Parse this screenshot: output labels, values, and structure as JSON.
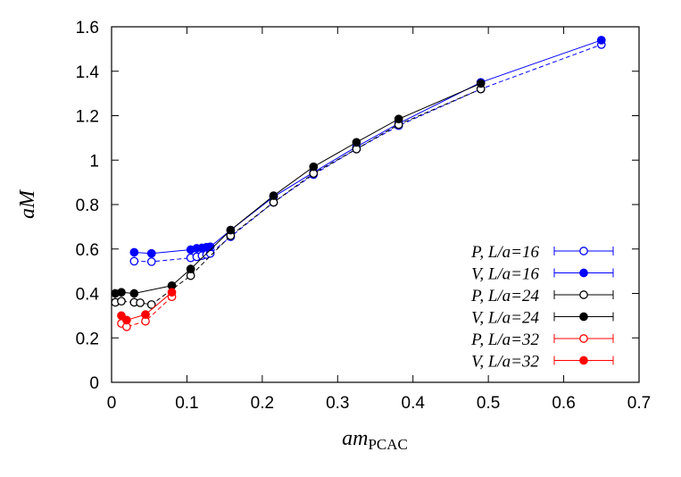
{
  "chart_data": {
    "type": "scatter",
    "title": "",
    "xlabel": {
      "main": "am",
      "sub": "PCAC"
    },
    "ylabel": "aM",
    "xlim": [
      0,
      0.7
    ],
    "ylim": [
      0,
      1.6
    ],
    "xticks": [
      0,
      0.1,
      0.2,
      0.3,
      0.4,
      0.5,
      0.6,
      0.7
    ],
    "xtick_labels": [
      "0",
      "0.1",
      "0.2",
      "0.3",
      "0.4",
      "0.5",
      "0.6",
      "0.7"
    ],
    "yticks": [
      0,
      0.2,
      0.4,
      0.6,
      0.8,
      1.0,
      1.2,
      1.4,
      1.6
    ],
    "ytick_labels": [
      "0",
      "0.2",
      "0.4",
      "0.6",
      "0.8",
      "1",
      "1.2",
      "1.4",
      "1.6"
    ],
    "grid": false,
    "legend_position": "right",
    "series": [
      {
        "name": "P, L/a=16",
        "color": "#0000ff",
        "marker": "open-circle",
        "line": "dashed",
        "x": [
          0.03,
          0.053,
          0.105,
          0.113,
          0.12,
          0.126,
          0.131,
          0.158,
          0.215,
          0.268,
          0.325,
          0.381,
          0.49,
          0.65
        ],
        "y": [
          0.545,
          0.543,
          0.56,
          0.565,
          0.57,
          0.575,
          0.58,
          0.655,
          0.81,
          0.935,
          1.05,
          1.155,
          1.32,
          1.52
        ]
      },
      {
        "name": "V, L/a=16",
        "color": "#0000ff",
        "marker": "filled-circle",
        "line": "solid",
        "x": [
          0.03,
          0.053,
          0.105,
          0.113,
          0.12,
          0.126,
          0.131,
          0.158,
          0.215,
          0.268,
          0.325,
          0.381,
          0.49,
          0.65
        ],
        "y": [
          0.585,
          0.58,
          0.597,
          0.603,
          0.605,
          0.608,
          0.61,
          0.685,
          0.835,
          0.945,
          1.06,
          1.165,
          1.35,
          1.54
        ]
      },
      {
        "name": "P, L/a=24",
        "color": "#000000",
        "marker": "open-circle",
        "line": "dashed",
        "x": [
          0.005,
          0.013,
          0.03,
          0.038,
          0.053,
          0.105,
          0.158,
          0.215,
          0.268,
          0.325,
          0.381,
          0.49
        ],
        "y": [
          0.36,
          0.365,
          0.36,
          0.358,
          0.35,
          0.48,
          0.66,
          0.81,
          0.94,
          1.05,
          1.16,
          1.32
        ]
      },
      {
        "name": "V, L/a=24",
        "color": "#000000",
        "marker": "filled-circle",
        "line": "solid",
        "x": [
          0.005,
          0.013,
          0.03,
          0.08,
          0.105,
          0.158,
          0.215,
          0.268,
          0.325,
          0.381,
          0.49
        ],
        "y": [
          0.4,
          0.405,
          0.4,
          0.435,
          0.51,
          0.685,
          0.84,
          0.97,
          1.08,
          1.185,
          1.345
        ]
      },
      {
        "name": "P, L/a=32",
        "color": "#ff0000",
        "marker": "open-circle",
        "line": "dashed",
        "x": [
          0.013,
          0.02,
          0.045,
          0.08
        ],
        "y": [
          0.265,
          0.25,
          0.275,
          0.385
        ]
      },
      {
        "name": "V, L/a=32",
        "color": "#ff0000",
        "marker": "filled-circle",
        "line": "solid",
        "x": [
          0.013,
          0.02,
          0.045,
          0.08
        ],
        "y": [
          0.3,
          0.28,
          0.305,
          0.405
        ]
      }
    ]
  }
}
